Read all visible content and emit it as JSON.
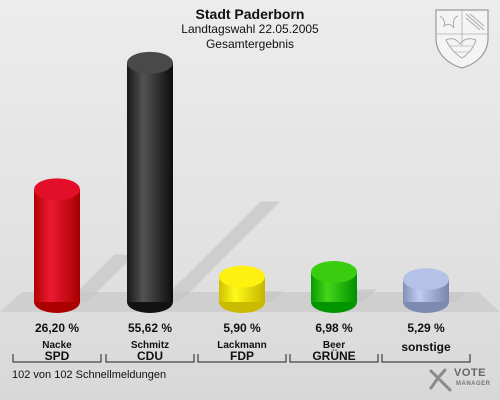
{
  "header": {
    "title": "Stadt Paderborn",
    "subtitle": "Landtagswahl 22.05.2005",
    "subtitle2": "Gesamtergebnis"
  },
  "chart_data": {
    "type": "bar",
    "title": "Stadt Paderborn",
    "categories": [
      "SPD",
      "CDU",
      "FDP",
      "GRÜNE",
      "sonstige"
    ],
    "candidates": [
      "Nacke",
      "Schmitz",
      "Lackmann",
      "Beer",
      ""
    ],
    "values": [
      26.2,
      55.62,
      5.9,
      6.98,
      5.29
    ],
    "value_labels": [
      "26,20 %",
      "55,62 %",
      "5,90 %",
      "6,98 %",
      "5,29 %"
    ],
    "colors": [
      "#d4001a",
      "#3a3a3a",
      "#f2e200",
      "#2bbd00",
      "#a6b3d8"
    ],
    "ylim": [
      0,
      60
    ],
    "grid": false,
    "legend": "none"
  },
  "footer": {
    "status": "102 von 102 Schnellmeldungen"
  },
  "branding": {
    "crest_icon": "nrw-crest-icon",
    "logo_text": "VOTE",
    "logo_sub": "MANAGER"
  }
}
